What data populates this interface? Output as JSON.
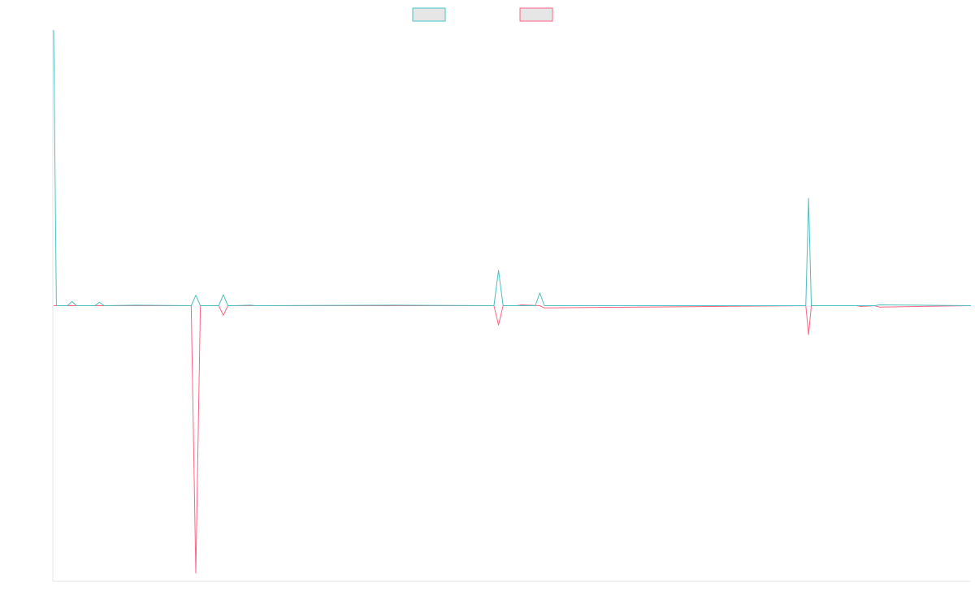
{
  "colors": {
    "series_a": "#4bc0c0",
    "series_b": "#ff6384",
    "legend_fill": "#e6e6e6",
    "axis": "#e5e5e5"
  },
  "chart_data": {
    "type": "line",
    "title": "",
    "xlabel": "",
    "ylabel": "",
    "legend_position": "top-center",
    "grid": false,
    "xlim": [
      0,
      100
    ],
    "ylim": [
      -1,
      1
    ],
    "series": [
      {
        "name": "",
        "x": [
          0,
          0.3,
          0.8,
          1.5,
          2,
          2.5,
          4.5,
          5,
          5.5,
          9,
          15,
          15.5,
          16,
          16.5,
          18,
          18.5,
          19,
          19.5,
          21.5,
          22,
          22.5,
          37,
          48,
          48.5,
          49,
          50.5,
          52.5,
          53,
          53.5,
          82,
          82.3,
          82.6,
          87.5,
          89.5,
          90,
          100
        ],
        "y": [
          1.0,
          0.0,
          0.0,
          0.0,
          0.015,
          0.0,
          0.0,
          0.013,
          0.0,
          0.002,
          0.0,
          0.038,
          0.0,
          0.0,
          0.0,
          0.04,
          0.0,
          0.0,
          0.002,
          0.0,
          0.0,
          0.002,
          0.0,
          0.128,
          0.0,
          0.0,
          0.0,
          0.046,
          0.0,
          0.0,
          0.39,
          0.0,
          0.0,
          0.0,
          0.003,
          0.0
        ]
      },
      {
        "name": "",
        "x": [
          0,
          15,
          15.5,
          16,
          18,
          18.5,
          19,
          48,
          48.5,
          49,
          50.5,
          51,
          53,
          53.5,
          82,
          82.3,
          82.6,
          87.5,
          88,
          89.5,
          90,
          100
        ],
        "y": [
          0.0,
          0.0,
          -0.97,
          0.0,
          0.0,
          -0.035,
          0.0,
          0.0,
          -0.07,
          0.0,
          0.0,
          0.003,
          0.0,
          -0.008,
          0.0,
          -0.105,
          0.0,
          0.0,
          -0.003,
          0.0,
          -0.005,
          0.0
        ]
      }
    ]
  }
}
